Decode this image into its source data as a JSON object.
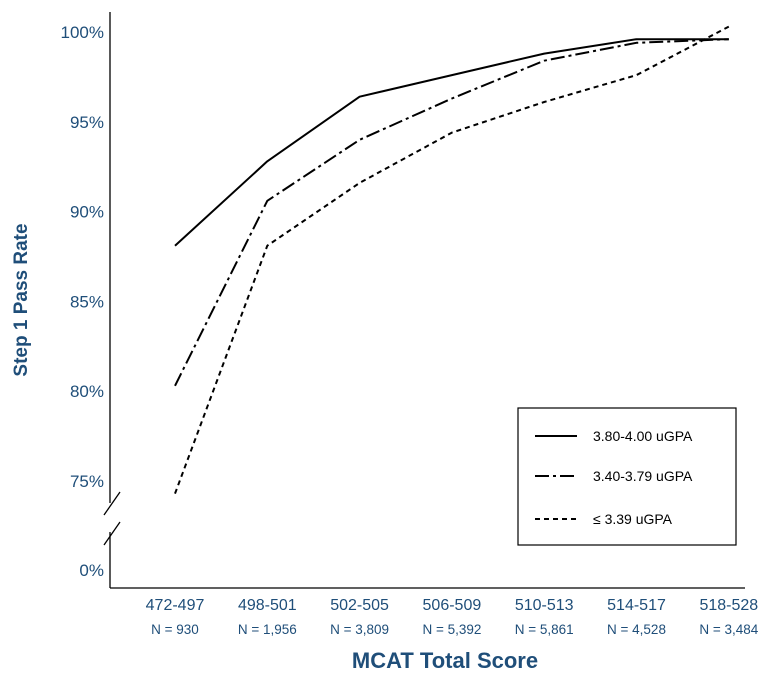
{
  "chart_data": {
    "type": "line",
    "title": "",
    "xlabel": "MCAT Total Score",
    "ylabel": "Step 1 Pass Rate",
    "ylim": [
      73,
      100.5
    ],
    "axis_break": {
      "from": 0,
      "to": 73,
      "label": "0%"
    },
    "yticks": [
      75,
      80,
      85,
      90,
      95,
      100
    ],
    "ytick_labels": [
      "75%",
      "80%",
      "85%",
      "90%",
      "95%",
      "100%"
    ],
    "categories": [
      "472-497",
      "498-501",
      "502-505",
      "506-509",
      "510-513",
      "514-517",
      "518-528"
    ],
    "n_labels": [
      "N = 930",
      "N = 1,956",
      "N = 3,809",
      "N = 5,392",
      "N = 5,861",
      "N = 4,528",
      "N = 3,484"
    ],
    "series": [
      {
        "name": "3.80-4.00 uGPA",
        "style": "solid",
        "values": [
          88.1,
          92.8,
          96.4,
          97.6,
          98.8,
          99.6,
          99.6
        ]
      },
      {
        "name": "3.40-3.79 uGPA",
        "style": "dashdot",
        "values": [
          80.3,
          90.6,
          94.0,
          96.3,
          98.4,
          99.4,
          99.6
        ]
      },
      {
        "name": "≤ 3.39 uGPA",
        "style": "dashed",
        "values": [
          74.3,
          88.1,
          91.6,
          94.4,
          96.1,
          97.6,
          100.3
        ]
      }
    ],
    "legend_position": "bottom-right",
    "grid": false,
    "line_color": "#000000",
    "text_color": "#1f4e79"
  }
}
